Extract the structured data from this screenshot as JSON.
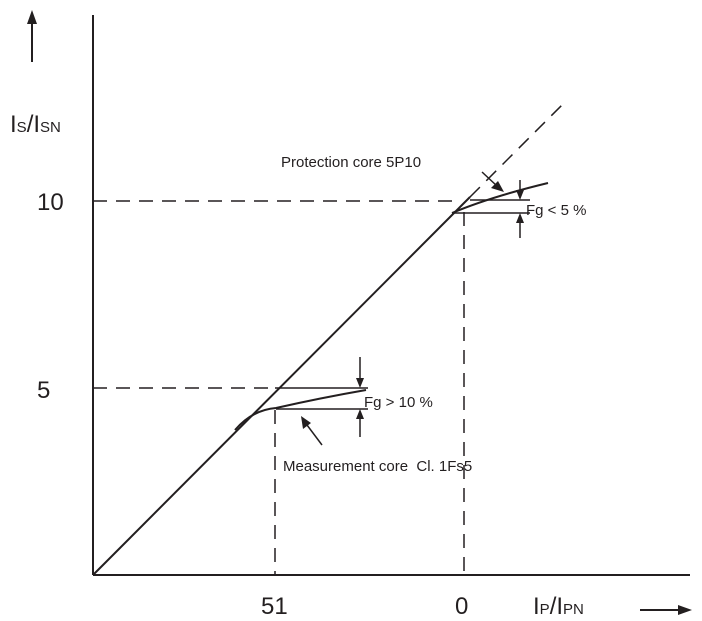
{
  "axes": {
    "y_label_prefix": "I",
    "y_label_sub1": "S",
    "y_label_mid": "/I",
    "y_label_sub2": "SN",
    "x_label_prefix": "I",
    "x_label_sub1": "P",
    "x_label_mid": "/I",
    "x_label_sub2": "PN",
    "y_ticks": [
      "10",
      "5"
    ],
    "x_ticks": [
      "51",
      "0"
    ]
  },
  "annotations": {
    "protection_core": "Protection core 5P10",
    "fg_protection": "Fg < 5 %",
    "fg_measurement": "Fg > 10 %",
    "measurement_core": "Measurement core  Cl. 1Fs5"
  }
}
